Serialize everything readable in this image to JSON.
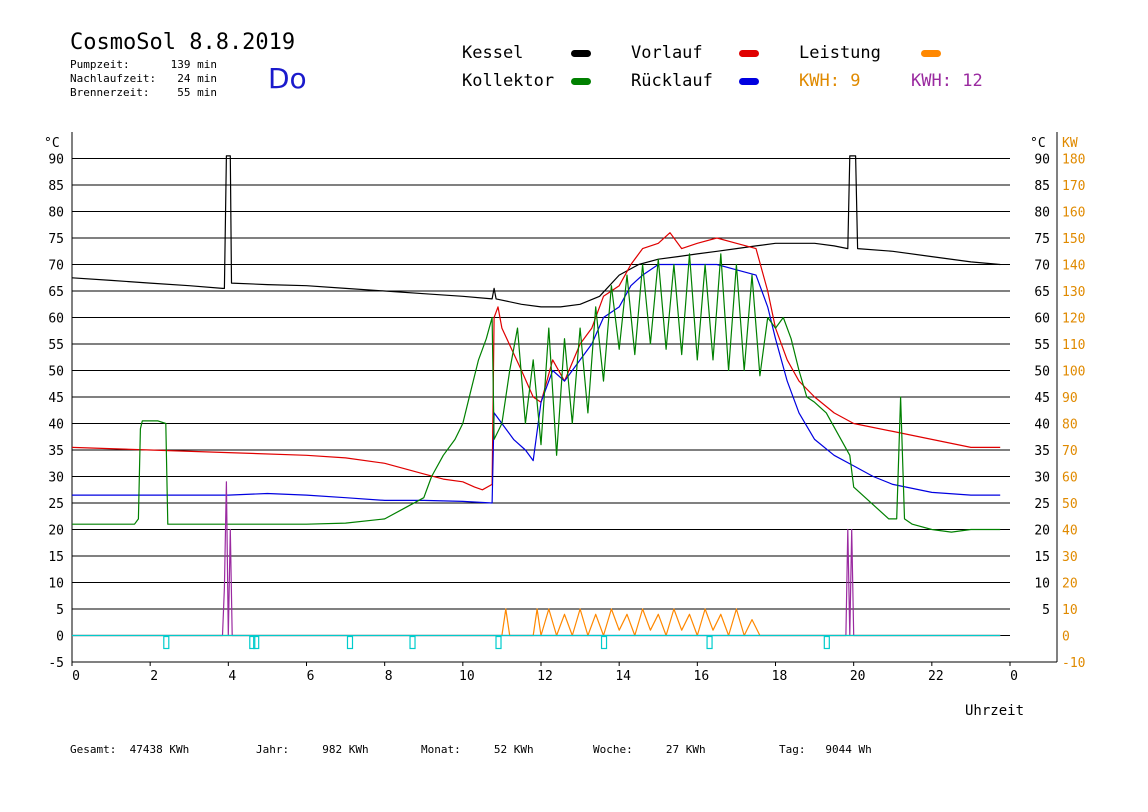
{
  "header": {
    "title": "CosmoSol 8.8.2019",
    "weekday": "Do",
    "stats": [
      {
        "label": "Pumpzeit:",
        "value": "139 min"
      },
      {
        "label": "Nachlaufzeit:",
        "value": "24 min"
      },
      {
        "label": "Brennerzeit:",
        "value": "55 min"
      }
    ]
  },
  "legend": [
    {
      "label": "Kessel",
      "color": "#000000"
    },
    {
      "label": "Vorlauf",
      "color": "#e00000"
    },
    {
      "label": "Leistung",
      "color": "#ff8800"
    },
    {
      "label": "Kollektor",
      "color": "#008000"
    },
    {
      "label": "Rücklauf",
      "color": "#0000e0"
    }
  ],
  "kwh": [
    {
      "label": "KWH:",
      "value": "9",
      "color": "#e08a00"
    },
    {
      "label": "KWH:",
      "value": "12",
      "color": "#9a2aa0"
    }
  ],
  "footer": [
    {
      "label": "Gesamt:",
      "value": "47438 KWh"
    },
    {
      "label": "Jahr:",
      "value": "982 KWh"
    },
    {
      "label": "Monat:",
      "value": "52 KWh"
    },
    {
      "label": "Woche:",
      "value": "27 KWh"
    },
    {
      "label": "Tag:",
      "value": "9044 Wh"
    }
  ],
  "chart_data": {
    "type": "line",
    "title": "CosmoSol 8.8.2019",
    "xlabel": "Uhrzeit",
    "ylabel_left": "°C",
    "ylabel_right": "KW",
    "xlim": [
      0,
      24
    ],
    "ylim": [
      -5,
      95
    ],
    "grid": true,
    "x_ticks": [
      "0",
      "2",
      "4",
      "6",
      "8",
      "10",
      "12",
      "14",
      "16",
      "18",
      "20",
      "22",
      "0"
    ],
    "y_ticks_left": [
      "90",
      "85",
      "80",
      "75",
      "70",
      "65",
      "60",
      "55",
      "50",
      "45",
      "40",
      "35",
      "30",
      "25",
      "20",
      "15",
      "10",
      "5",
      "0",
      "-5"
    ],
    "y_ticks_right_c": [
      "90",
      "85",
      "80",
      "75",
      "70",
      "65",
      "60",
      "55",
      "50",
      "45",
      "40",
      "35",
      "30",
      "25",
      "20",
      "15",
      "10",
      "5"
    ],
    "y_ticks_right_kw": [
      "180",
      "170",
      "160",
      "150",
      "140",
      "130",
      "120",
      "110",
      "100",
      "90",
      "80",
      "70",
      "60",
      "50",
      "40",
      "30",
      "20",
      "10",
      "0",
      "-10"
    ],
    "series": [
      {
        "name": "Kessel",
        "color": "#000000",
        "points": [
          [
            0,
            67.5
          ],
          [
            1,
            67
          ],
          [
            2,
            66.5
          ],
          [
            3,
            66
          ],
          [
            3.85,
            65.5
          ],
          [
            3.9,
            65.5
          ],
          [
            3.95,
            90.5
          ],
          [
            4.05,
            90.5
          ],
          [
            4.08,
            66.5
          ],
          [
            5,
            66.2
          ],
          [
            6,
            66
          ],
          [
            7,
            65.5
          ],
          [
            8,
            65
          ],
          [
            9,
            64.5
          ],
          [
            10,
            64
          ],
          [
            10.75,
            63.5
          ],
          [
            10.8,
            65.5
          ],
          [
            10.85,
            63.5
          ],
          [
            11.5,
            62.5
          ],
          [
            12,
            62
          ],
          [
            12.5,
            62
          ],
          [
            13,
            62.5
          ],
          [
            13.5,
            64
          ],
          [
            14,
            68
          ],
          [
            14.5,
            70
          ],
          [
            15,
            71
          ],
          [
            15.5,
            71.5
          ],
          [
            16,
            72
          ],
          [
            16.5,
            72.5
          ],
          [
            17,
            73
          ],
          [
            17.5,
            73.5
          ],
          [
            18,
            74
          ],
          [
            18.5,
            74
          ],
          [
            19,
            74
          ],
          [
            19.5,
            73.5
          ],
          [
            19.85,
            73
          ],
          [
            19.9,
            90.5
          ],
          [
            20.05,
            90.5
          ],
          [
            20.1,
            73
          ],
          [
            21,
            72.5
          ],
          [
            22,
            71.5
          ],
          [
            23,
            70.5
          ],
          [
            23.75,
            70
          ]
        ]
      },
      {
        "name": "Vorlauf",
        "color": "#e00000",
        "points": [
          [
            0,
            35.5
          ],
          [
            2,
            35
          ],
          [
            4,
            34.5
          ],
          [
            6,
            34
          ],
          [
            7,
            33.5
          ],
          [
            8,
            32.5
          ],
          [
            9,
            30.5
          ],
          [
            9.5,
            29.5
          ],
          [
            10,
            29
          ],
          [
            10.3,
            28
          ],
          [
            10.5,
            27.5
          ],
          [
            10.75,
            28.5
          ],
          [
            10.8,
            60
          ],
          [
            10.9,
            62
          ],
          [
            11,
            58
          ],
          [
            11.5,
            50
          ],
          [
            11.8,
            45
          ],
          [
            12,
            44
          ],
          [
            12.3,
            52
          ],
          [
            12.6,
            48
          ],
          [
            13,
            55
          ],
          [
            13.3,
            58
          ],
          [
            13.6,
            64
          ],
          [
            14,
            66
          ],
          [
            14.3,
            70
          ],
          [
            14.6,
            73
          ],
          [
            15,
            74
          ],
          [
            15.3,
            76
          ],
          [
            15.6,
            73
          ],
          [
            16,
            74
          ],
          [
            16.5,
            75
          ],
          [
            17,
            74
          ],
          [
            17.5,
            73
          ],
          [
            17.8,
            65
          ],
          [
            18,
            58
          ],
          [
            18.3,
            52
          ],
          [
            18.6,
            48
          ],
          [
            19,
            45
          ],
          [
            19.5,
            42
          ],
          [
            20,
            40
          ],
          [
            21,
            38.5
          ],
          [
            22,
            37
          ],
          [
            23,
            35.5
          ],
          [
            23.75,
            35.5
          ]
        ]
      },
      {
        "name": "Rücklauf",
        "color": "#0000e0",
        "points": [
          [
            0,
            26.5
          ],
          [
            2,
            26.5
          ],
          [
            4,
            26.5
          ],
          [
            5,
            26.8
          ],
          [
            6,
            26.5
          ],
          [
            7,
            26
          ],
          [
            8,
            25.5
          ],
          [
            9,
            25.5
          ],
          [
            10,
            25.3
          ],
          [
            10.75,
            25
          ],
          [
            10.8,
            42
          ],
          [
            11,
            40
          ],
          [
            11.3,
            37
          ],
          [
            11.6,
            35
          ],
          [
            11.8,
            33
          ],
          [
            12,
            44
          ],
          [
            12.3,
            50
          ],
          [
            12.6,
            48
          ],
          [
            13,
            52
          ],
          [
            13.3,
            55
          ],
          [
            13.6,
            60
          ],
          [
            14,
            62
          ],
          [
            14.3,
            66
          ],
          [
            14.6,
            68
          ],
          [
            15,
            70
          ],
          [
            15.5,
            70
          ],
          [
            16,
            70
          ],
          [
            16.5,
            70
          ],
          [
            17,
            69
          ],
          [
            17.5,
            68
          ],
          [
            17.8,
            62
          ],
          [
            18,
            56
          ],
          [
            18.3,
            48
          ],
          [
            18.6,
            42
          ],
          [
            19,
            37
          ],
          [
            19.5,
            34
          ],
          [
            20,
            32
          ],
          [
            20.5,
            30
          ],
          [
            21,
            28.5
          ],
          [
            22,
            27
          ],
          [
            23,
            26.5
          ],
          [
            23.75,
            26.5
          ]
        ]
      },
      {
        "name": "Kollektor",
        "color": "#008000",
        "points": [
          [
            0,
            21
          ],
          [
            1,
            21
          ],
          [
            1.6,
            21
          ],
          [
            1.7,
            22
          ],
          [
            1.75,
            39
          ],
          [
            1.8,
            40.5
          ],
          [
            2.2,
            40.5
          ],
          [
            2.4,
            40
          ],
          [
            2.45,
            21
          ],
          [
            3,
            21
          ],
          [
            4,
            21
          ],
          [
            5,
            21
          ],
          [
            6,
            21
          ],
          [
            7,
            21.2
          ],
          [
            8,
            22
          ],
          [
            8.5,
            24
          ],
          [
            9,
            26
          ],
          [
            9.2,
            30
          ],
          [
            9.5,
            34
          ],
          [
            9.8,
            37
          ],
          [
            10,
            40
          ],
          [
            10.2,
            46
          ],
          [
            10.4,
            52
          ],
          [
            10.6,
            56
          ],
          [
            10.75,
            60
          ],
          [
            10.8,
            37
          ],
          [
            11,
            40
          ],
          [
            11.2,
            50
          ],
          [
            11.4,
            58
          ],
          [
            11.6,
            40
          ],
          [
            11.8,
            52
          ],
          [
            12,
            36
          ],
          [
            12.2,
            58
          ],
          [
            12.4,
            34
          ],
          [
            12.6,
            56
          ],
          [
            12.8,
            40
          ],
          [
            13,
            58
          ],
          [
            13.2,
            42
          ],
          [
            13.4,
            62
          ],
          [
            13.6,
            48
          ],
          [
            13.8,
            66
          ],
          [
            14,
            54
          ],
          [
            14.2,
            68
          ],
          [
            14.4,
            53
          ],
          [
            14.6,
            70
          ],
          [
            14.8,
            55
          ],
          [
            15,
            71
          ],
          [
            15.2,
            54
          ],
          [
            15.4,
            70
          ],
          [
            15.6,
            53
          ],
          [
            15.8,
            72
          ],
          [
            16,
            52
          ],
          [
            16.2,
            70
          ],
          [
            16.4,
            52
          ],
          [
            16.6,
            72
          ],
          [
            16.8,
            50
          ],
          [
            17,
            70
          ],
          [
            17.2,
            50
          ],
          [
            17.4,
            68
          ],
          [
            17.6,
            49
          ],
          [
            17.8,
            60
          ],
          [
            18,
            58
          ],
          [
            18.2,
            60
          ],
          [
            18.4,
            56
          ],
          [
            18.6,
            50
          ],
          [
            18.8,
            45
          ],
          [
            19,
            44
          ],
          [
            19.3,
            42
          ],
          [
            19.6,
            38
          ],
          [
            19.9,
            34
          ],
          [
            20,
            28
          ],
          [
            20.3,
            26
          ],
          [
            20.6,
            24
          ],
          [
            20.9,
            22
          ],
          [
            21.1,
            22
          ],
          [
            21.2,
            45
          ],
          [
            21.3,
            22
          ],
          [
            21.5,
            21
          ],
          [
            22,
            20
          ],
          [
            22.5,
            19.5
          ],
          [
            23,
            20
          ],
          [
            23.75,
            20
          ]
        ]
      },
      {
        "name": "Leistung",
        "color": "#ff8800",
        "points": [
          [
            0,
            0
          ],
          [
            10.7,
            0
          ],
          [
            11,
            0
          ],
          [
            11.1,
            5
          ],
          [
            11.2,
            0
          ],
          [
            11.8,
            0
          ],
          [
            11.9,
            5
          ],
          [
            12,
            0
          ],
          [
            12.2,
            5
          ],
          [
            12.4,
            0
          ],
          [
            12.6,
            4
          ],
          [
            12.8,
            0
          ],
          [
            13,
            5
          ],
          [
            13.2,
            0
          ],
          [
            13.4,
            4
          ],
          [
            13.6,
            0
          ],
          [
            13.8,
            5
          ],
          [
            14,
            1
          ],
          [
            14.2,
            4
          ],
          [
            14.4,
            0
          ],
          [
            14.6,
            5
          ],
          [
            14.8,
            1
          ],
          [
            15,
            4
          ],
          [
            15.2,
            0
          ],
          [
            15.4,
            5
          ],
          [
            15.6,
            1
          ],
          [
            15.8,
            4
          ],
          [
            16,
            0
          ],
          [
            16.2,
            5
          ],
          [
            16.4,
            1
          ],
          [
            16.6,
            4
          ],
          [
            16.8,
            0
          ],
          [
            17,
            5
          ],
          [
            17.2,
            0
          ],
          [
            17.4,
            3
          ],
          [
            17.6,
            0
          ],
          [
            18,
            0
          ],
          [
            23.75,
            0
          ]
        ]
      },
      {
        "name": "Brenner",
        "color": "#9a2aa0",
        "points": [
          [
            0,
            0
          ],
          [
            3.85,
            0
          ],
          [
            3.9,
            9
          ],
          [
            3.95,
            29
          ],
          [
            4.0,
            0
          ],
          [
            4.05,
            20
          ],
          [
            4.1,
            0
          ],
          [
            19.8,
            0
          ],
          [
            19.85,
            20
          ],
          [
            19.9,
            0
          ],
          [
            19.95,
            20
          ],
          [
            20.0,
            0
          ],
          [
            23.75,
            0
          ]
        ]
      },
      {
        "name": "Pumpe",
        "color": "#00cccc",
        "points": [
          [
            0,
            0
          ],
          [
            23.75,
            0
          ]
        ]
      }
    ],
    "pump_pulses": [
      2.4,
      4.6,
      4.7,
      7.1,
      8.7,
      10.9,
      13.6,
      16.3,
      19.3
    ]
  }
}
